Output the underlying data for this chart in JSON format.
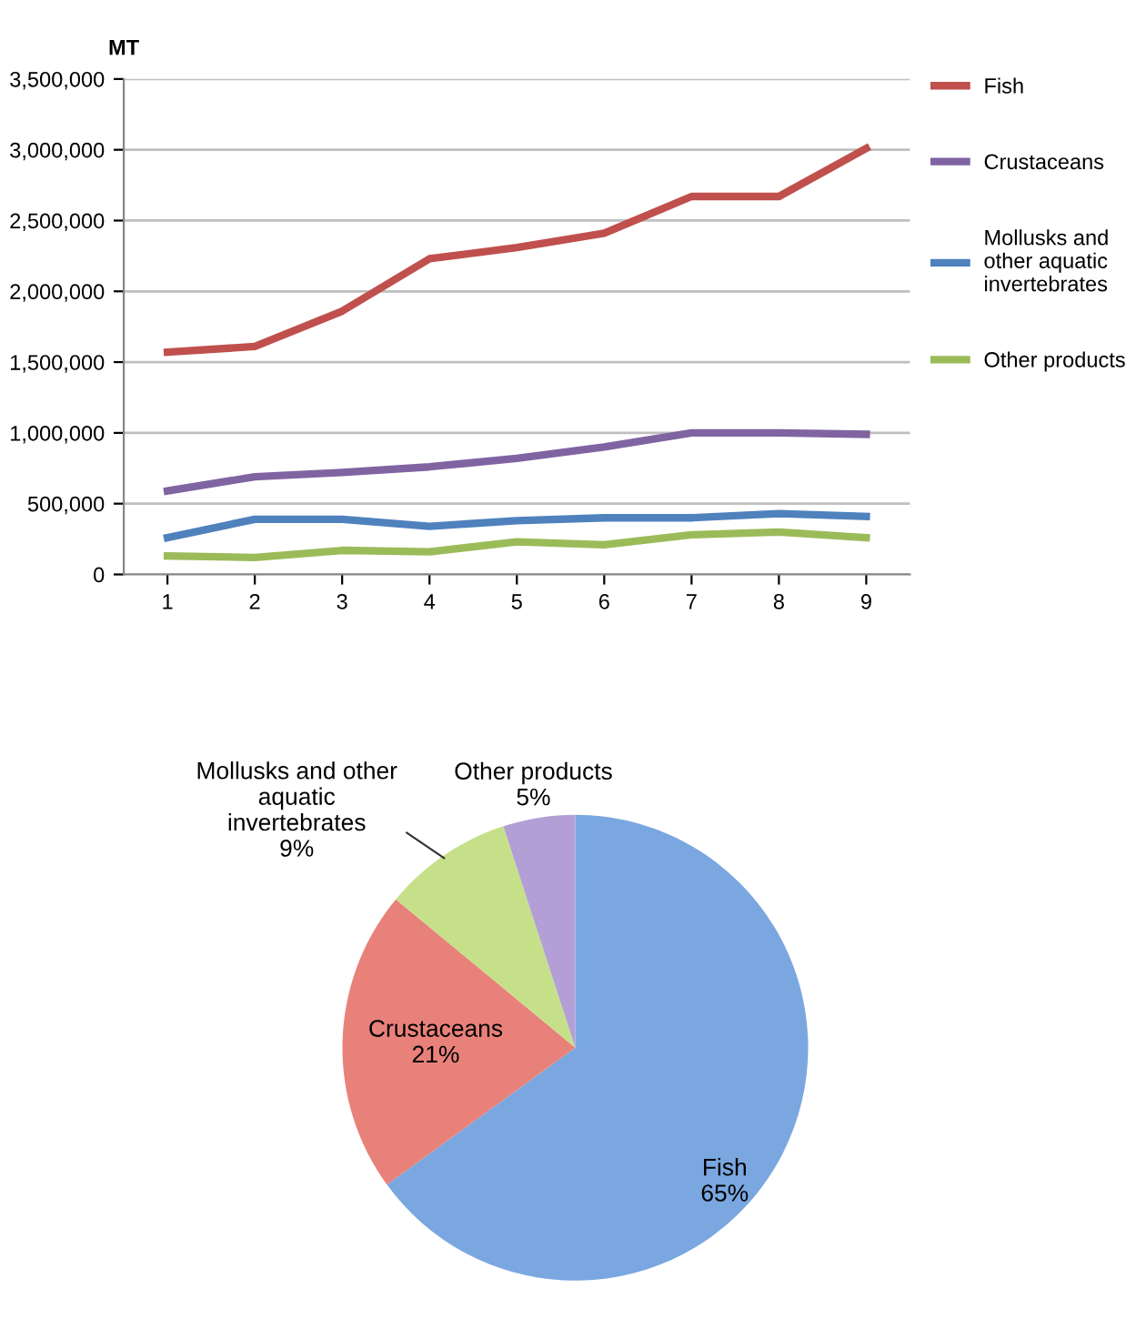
{
  "chart_data": [
    {
      "type": "line",
      "ylabel": "MT",
      "categories": [
        "1",
        "2",
        "3",
        "4",
        "5",
        "6",
        "7",
        "8",
        "9"
      ],
      "series": [
        {
          "name": "Fish",
          "color": "#c0504d",
          "values": [
            1570000,
            1610000,
            1860000,
            2230000,
            2310000,
            2410000,
            2670000,
            2670000,
            3010000
          ]
        },
        {
          "name": "Crustaceans",
          "color": "#8064a2",
          "values": [
            590000,
            690000,
            720000,
            760000,
            820000,
            900000,
            1000000,
            1000000,
            990000
          ]
        },
        {
          "name": "Mollusks and\nother aquatic\ninvertebrates",
          "color": "#4f81bd",
          "values": [
            260000,
            390000,
            390000,
            340000,
            380000,
            400000,
            400000,
            430000,
            410000
          ]
        },
        {
          "name": "Other products",
          "color": "#9bbb59",
          "values": [
            130000,
            120000,
            170000,
            160000,
            230000,
            210000,
            280000,
            300000,
            260000
          ]
        }
      ],
      "ylim": [
        0,
        3500000
      ],
      "yticks": [
        {
          "value": 0,
          "label": "0"
        },
        {
          "value": 500000,
          "label": "500,000"
        },
        {
          "value": 1000000,
          "label": "1,000,000"
        },
        {
          "value": 1500000,
          "label": "1,500,000"
        },
        {
          "value": 2000000,
          "label": "2,000,000"
        },
        {
          "value": 2500000,
          "label": "2,500,000"
        },
        {
          "value": 3000000,
          "label": "3,000,000"
        },
        {
          "value": 3500000,
          "label": "3,500,000"
        }
      ],
      "grid": "y",
      "legend": "top right",
      "marker": "none",
      "line_style": "solid"
    },
    {
      "type": "pie",
      "categories": [
        "Fish",
        "Crustaceans",
        "Mollusks and other\naquatic\ninvertebrates",
        "Other products"
      ],
      "values": [
        65,
        21,
        9,
        5
      ],
      "value_labels": [
        "65%",
        "21%",
        "9%",
        "5%"
      ],
      "colors": [
        "#7aa7e0",
        "#e8817a",
        "#c6e08a",
        "#b39fd6"
      ]
    }
  ]
}
